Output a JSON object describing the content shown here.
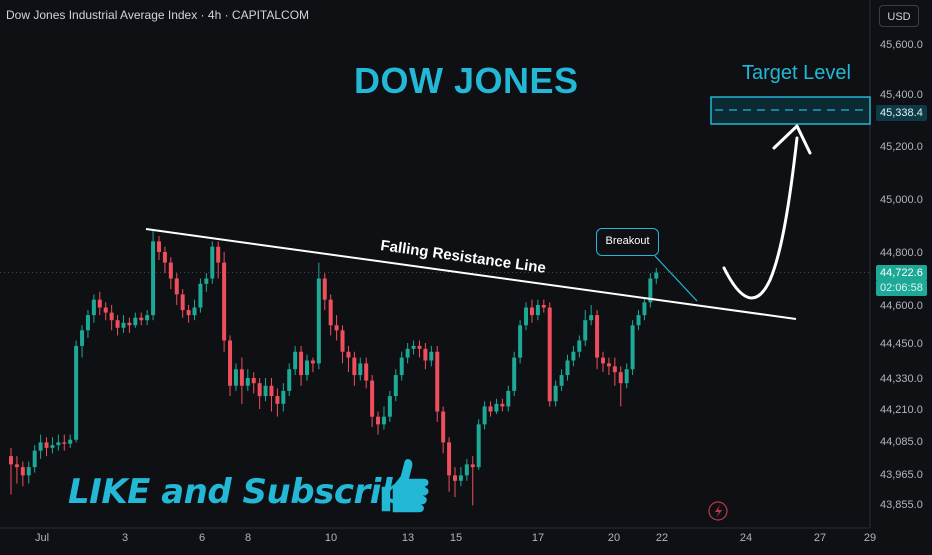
{
  "header": {
    "symbol_text": "Dow Jones Industrial Average Index · 4h · CAPITALCOM",
    "currency": "USD"
  },
  "annotations": {
    "title": "DOW JONES",
    "target_label": "Target Level",
    "resistance_label": "Falling Resistance Line",
    "breakout_label": "Breakout",
    "cta": "LIKE and Subscribe"
  },
  "price_scale": {
    "target_value": "45,338.4",
    "last_price": "44,722.6",
    "countdown": "02:06:58"
  },
  "colors": {
    "background": "#0e1014",
    "up": "#1ea896",
    "down": "#ef4f5d",
    "accent": "#22b8d6"
  },
  "icons": {
    "thumb": "thumbs-up-icon",
    "flash": "lightning-icon"
  },
  "chart_data": {
    "type": "candlestick",
    "timeframe": "4h",
    "y_ticks": [
      45600,
      45400,
      45200,
      45000,
      44800,
      44600,
      44450,
      44330,
      44210,
      44085,
      43965,
      43855
    ],
    "y_tick_labels": [
      "45,600.0",
      "45,400.0",
      "45,200.0",
      "45,000.0",
      "44,800.0",
      "44,600.0",
      "44,450.0",
      "44,330.0",
      "44,210.0",
      "44,085.0",
      "43,965.0",
      "43,855.0"
    ],
    "x_ticks": [
      "Jul",
      "3",
      "6",
      "8",
      "10",
      "13",
      "15",
      "17",
      "20",
      "22",
      "24",
      "27",
      "29"
    ],
    "candles": [
      [
        44030,
        44000,
        43890,
        44060
      ],
      [
        44000,
        43990,
        43930,
        44030
      ],
      [
        43990,
        43960,
        43920,
        44010
      ],
      [
        43960,
        43990,
        43930,
        44010
      ],
      [
        43990,
        44050,
        43970,
        44070
      ],
      [
        44050,
        44080,
        44020,
        44110
      ],
      [
        44080,
        44060,
        44030,
        44100
      ],
      [
        44060,
        44070,
        44040,
        44100
      ],
      [
        44070,
        44080,
        44050,
        44110
      ],
      [
        44080,
        44075,
        44050,
        44110
      ],
      [
        44075,
        44090,
        44060,
        44110
      ],
      [
        44090,
        44440,
        44080,
        44460
      ],
      [
        44440,
        44500,
        44400,
        44520
      ],
      [
        44500,
        44560,
        44470,
        44580
      ],
      [
        44560,
        44620,
        44530,
        44640
      ],
      [
        44620,
        44590,
        44560,
        44650
      ],
      [
        44590,
        44570,
        44540,
        44610
      ],
      [
        44570,
        44540,
        44500,
        44600
      ],
      [
        44540,
        44510,
        44480,
        44560
      ],
      [
        44510,
        44530,
        44490,
        44560
      ],
      [
        44530,
        44520,
        44490,
        44550
      ],
      [
        44520,
        44550,
        44510,
        44570
      ],
      [
        44550,
        44540,
        44520,
        44570
      ],
      [
        44540,
        44560,
        44520,
        44580
      ],
      [
        44560,
        44840,
        44540,
        44880
      ],
      [
        44840,
        44800,
        44770,
        44860
      ],
      [
        44800,
        44760,
        44720,
        44820
      ],
      [
        44760,
        44700,
        44660,
        44780
      ],
      [
        44700,
        44640,
        44600,
        44720
      ],
      [
        44640,
        44580,
        44550,
        44660
      ],
      [
        44580,
        44560,
        44530,
        44600
      ],
      [
        44560,
        44590,
        44540,
        44620
      ],
      [
        44590,
        44680,
        44570,
        44700
      ],
      [
        44680,
        44700,
        44650,
        44720
      ],
      [
        44700,
        44820,
        44680,
        44840
      ],
      [
        44820,
        44760,
        44700,
        44840
      ],
      [
        44760,
        44460,
        44420,
        44800
      ],
      [
        44460,
        44300,
        44260,
        44480
      ],
      [
        44300,
        44360,
        44280,
        44380
      ],
      [
        44360,
        44300,
        44230,
        44400
      ],
      [
        44300,
        44330,
        44280,
        44360
      ],
      [
        44330,
        44310,
        44270,
        44350
      ],
      [
        44310,
        44260,
        44210,
        44330
      ],
      [
        44260,
        44300,
        44240,
        44330
      ],
      [
        44300,
        44260,
        44200,
        44330
      ],
      [
        44260,
        44230,
        44180,
        44290
      ],
      [
        44230,
        44280,
        44200,
        44310
      ],
      [
        44280,
        44360,
        44260,
        44380
      ],
      [
        44360,
        44420,
        44340,
        44440
      ],
      [
        44420,
        44340,
        44300,
        44440
      ],
      [
        44340,
        44390,
        44320,
        44410
      ],
      [
        44390,
        44380,
        44350,
        44400
      ],
      [
        44380,
        44700,
        44360,
        44760
      ],
      [
        44700,
        44620,
        44580,
        44720
      ],
      [
        44620,
        44520,
        44480,
        44640
      ],
      [
        44520,
        44500,
        44460,
        44560
      ],
      [
        44500,
        44420,
        44380,
        44520
      ],
      [
        44420,
        44400,
        44350,
        44440
      ],
      [
        44400,
        44340,
        44300,
        44420
      ],
      [
        44340,
        44380,
        44320,
        44400
      ],
      [
        44380,
        44320,
        44290,
        44400
      ],
      [
        44320,
        44180,
        44140,
        44340
      ],
      [
        44180,
        44150,
        44110,
        44200
      ],
      [
        44150,
        44180,
        44130,
        44220
      ],
      [
        44180,
        44260,
        44160,
        44280
      ],
      [
        44260,
        44340,
        44240,
        44360
      ],
      [
        44340,
        44400,
        44320,
        44420
      ],
      [
        44400,
        44430,
        44380,
        44450
      ],
      [
        44430,
        44440,
        44410,
        44460
      ],
      [
        44440,
        44430,
        44400,
        44460
      ],
      [
        44430,
        44390,
        44360,
        44450
      ],
      [
        44390,
        44420,
        44370,
        44440
      ],
      [
        44420,
        44200,
        44160,
        44440
      ],
      [
        44200,
        44080,
        44040,
        44220
      ],
      [
        44080,
        43960,
        43900,
        44100
      ],
      [
        43960,
        43940,
        43880,
        43990
      ],
      [
        43940,
        43960,
        43920,
        43990
      ],
      [
        43960,
        44000,
        43940,
        44020
      ],
      [
        44000,
        43990,
        43850,
        44030
      ],
      [
        43990,
        44150,
        43980,
        44170
      ],
      [
        44150,
        44220,
        44130,
        44240
      ],
      [
        44220,
        44200,
        44180,
        44240
      ],
      [
        44200,
        44230,
        44190,
        44250
      ],
      [
        44230,
        44220,
        44200,
        44250
      ],
      [
        44220,
        44280,
        44200,
        44300
      ],
      [
        44280,
        44400,
        44260,
        44420
      ],
      [
        44400,
        44520,
        44380,
        44540
      ],
      [
        44520,
        44590,
        44500,
        44610
      ],
      [
        44590,
        44560,
        44530,
        44620
      ],
      [
        44560,
        44600,
        44540,
        44620
      ],
      [
        44600,
        44590,
        44570,
        44620
      ],
      [
        44590,
        44240,
        44220,
        44610
      ],
      [
        44240,
        44300,
        44220,
        44320
      ],
      [
        44300,
        44340,
        44280,
        44360
      ],
      [
        44340,
        44390,
        44320,
        44410
      ],
      [
        44390,
        44420,
        44370,
        44440
      ],
      [
        44420,
        44460,
        44400,
        44480
      ],
      [
        44460,
        44540,
        44440,
        44580
      ],
      [
        44540,
        44560,
        44520,
        44600
      ],
      [
        44560,
        44400,
        44360,
        44580
      ],
      [
        44400,
        44380,
        44350,
        44420
      ],
      [
        44380,
        44370,
        44340,
        44400
      ],
      [
        44370,
        44350,
        44300,
        44400
      ],
      [
        44350,
        44310,
        44220,
        44370
      ],
      [
        44310,
        44360,
        44290,
        44380
      ],
      [
        44360,
        44520,
        44340,
        44540
      ],
      [
        44520,
        44560,
        44500,
        44580
      ],
      [
        44560,
        44610,
        44540,
        44630
      ],
      [
        44610,
        44700,
        44590,
        44720
      ],
      [
        44700,
        44722.6,
        44680,
        44740
      ]
    ],
    "resistance_line": {
      "from": [
        0,
        44870
      ],
      "to": [
        1,
        44540
      ]
    },
    "target_level": 45338.4
  }
}
